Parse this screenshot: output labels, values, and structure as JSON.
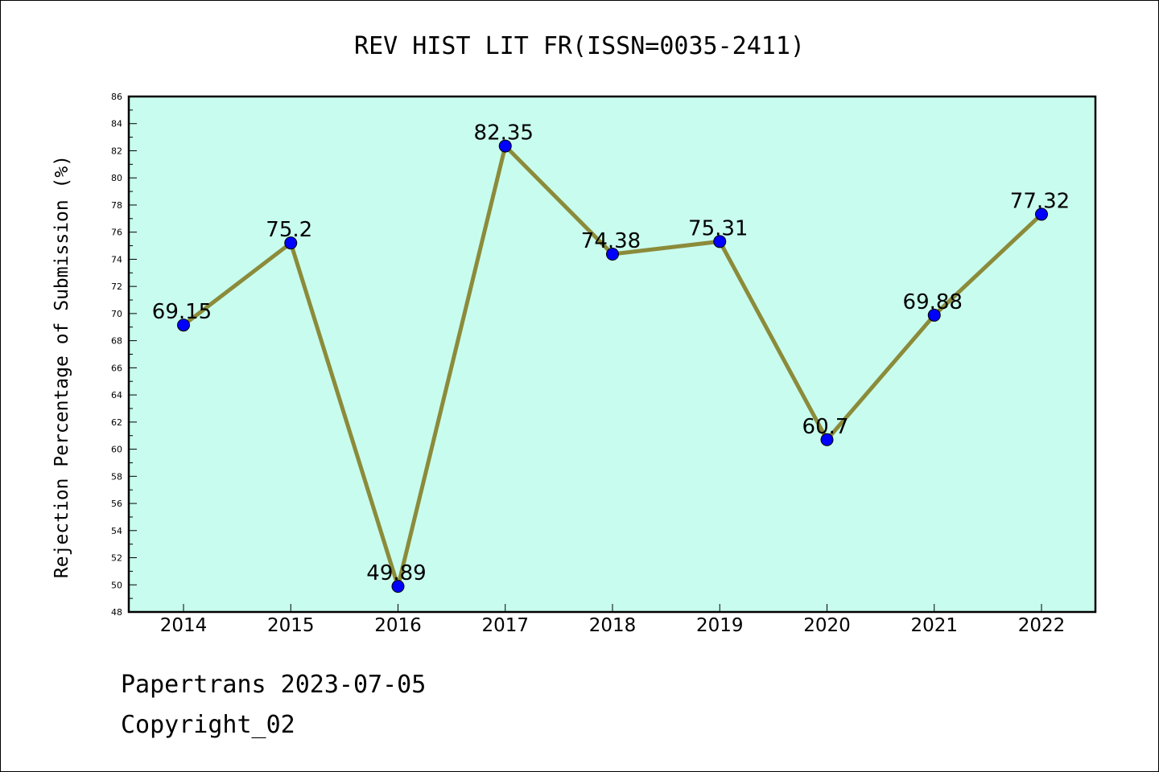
{
  "chart_data": {
    "type": "line",
    "title": "REV HIST LIT FR(ISSN=0035-2411)",
    "xlabel": "",
    "ylabel": "Rejection Percentage of Submission (%)",
    "categories": [
      "2014",
      "2015",
      "2016",
      "2017",
      "2018",
      "2019",
      "2020",
      "2021",
      "2022"
    ],
    "values": [
      69.15,
      75.2,
      49.89,
      82.35,
      74.38,
      75.31,
      60.7,
      69.88,
      77.32
    ],
    "data_labels": [
      "69.15",
      "75.2",
      "49.89",
      "82.35",
      "74.38",
      "75.31",
      "60.7",
      "69.88",
      "77.32"
    ],
    "ylim": [
      48,
      86
    ],
    "yticks": [
      "48",
      "50",
      "52",
      "54",
      "56",
      "58",
      "60",
      "62",
      "64",
      "66",
      "68",
      "70",
      "72",
      "74",
      "76",
      "78",
      "80",
      "82",
      "84",
      "86"
    ],
    "grid": false,
    "legend": "none",
    "colors": {
      "plot_background": "#c8fcee",
      "line": "#8b8b3a",
      "marker": "#0000ff"
    }
  },
  "footer": {
    "line1": "Papertrans 2023-07-05",
    "line2": "Copyright_02"
  }
}
